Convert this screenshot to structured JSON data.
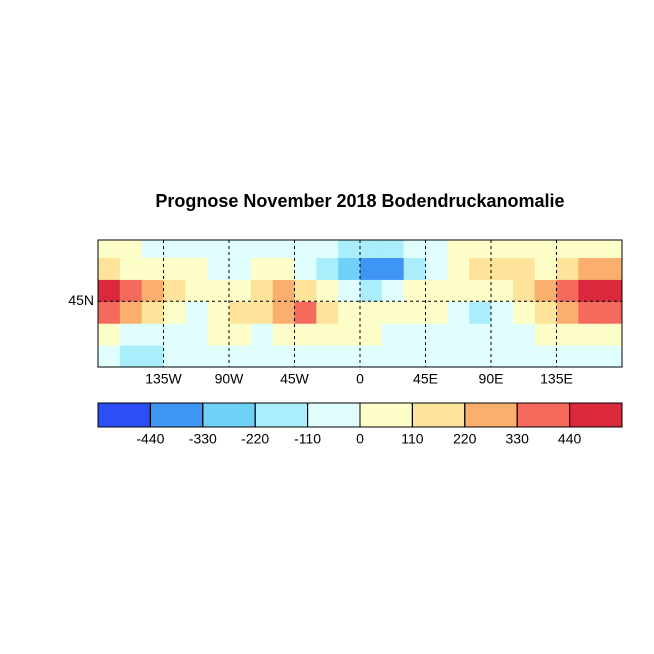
{
  "chart_data": {
    "type": "heatmap-map",
    "title": "Prognose November 2018 Bodendruckanomalie",
    "xlim": [
      -180,
      180
    ],
    "ylim": [
      0,
      87
    ],
    "xticks": [
      {
        "value": -135,
        "label": "135W"
      },
      {
        "value": -90,
        "label": "90W"
      },
      {
        "value": -45,
        "label": "45W"
      },
      0,
      {
        "value": 45,
        "label": "45E"
      },
      {
        "value": 90,
        "label": "90E"
      },
      {
        "value": 135,
        "label": "135E"
      }
    ],
    "yticks": [
      {
        "value": 45,
        "label": "45N"
      }
    ],
    "grid": true,
    "lon_edges": [
      -180,
      -165,
      -150,
      -135,
      -120,
      -105,
      -90,
      -75,
      -60,
      -45,
      -30,
      -15,
      0,
      15,
      30,
      45,
      60,
      75,
      90,
      105,
      120,
      135,
      150,
      165,
      180
    ],
    "lat_edges": [
      0,
      15,
      30,
      45,
      60,
      75,
      90
    ],
    "field": [
      [
        -80,
        -120,
        -120,
        -80,
        -60,
        -60,
        -60,
        -60,
        -30,
        -30,
        -60,
        -60,
        -60,
        -60,
        -60,
        -60,
        -60,
        -60,
        -60,
        -60,
        -80,
        -80,
        -80,
        -80
      ],
      [
        50,
        -60,
        -80,
        -60,
        -60,
        50,
        50,
        -60,
        50,
        80,
        80,
        50,
        30,
        -30,
        -60,
        -60,
        -60,
        -110,
        -60,
        -60,
        50,
        50,
        80,
        80
      ],
      [
        400,
        300,
        200,
        100,
        -60,
        80,
        150,
        200,
        250,
        330,
        200,
        50,
        50,
        50,
        50,
        50,
        -60,
        -150,
        -60,
        50,
        150,
        250,
        330,
        400
      ],
      [
        450,
        400,
        250,
        120,
        80,
        80,
        80,
        150,
        250,
        200,
        60,
        -80,
        -150,
        -60,
        50,
        80,
        80,
        80,
        80,
        150,
        250,
        330,
        450,
        480
      ],
      [
        200,
        100,
        80,
        50,
        50,
        -60,
        -60,
        80,
        60,
        -60,
        -150,
        -250,
        -400,
        -350,
        -200,
        -60,
        50,
        150,
        200,
        150,
        100,
        150,
        250,
        250
      ],
      [
        50,
        50,
        -60,
        -60,
        -60,
        -60,
        -60,
        -60,
        -60,
        -80,
        -80,
        -150,
        -200,
        -150,
        -80,
        -60,
        50,
        80,
        80,
        80,
        50,
        50,
        50,
        50
      ]
    ],
    "colorbar": {
      "lim": [
        -550,
        550
      ],
      "ticks": [
        -440,
        -330,
        -220,
        -110,
        0,
        110,
        220,
        330,
        440
      ],
      "colors": [
        "#2c4ef7",
        "#3f95f4",
        "#6fd0f8",
        "#a9eefa",
        "#e0fefe",
        "#fefec8",
        "#fde49a",
        "#fbaf6e",
        "#f56a5c",
        "#d9293a"
      ]
    }
  }
}
